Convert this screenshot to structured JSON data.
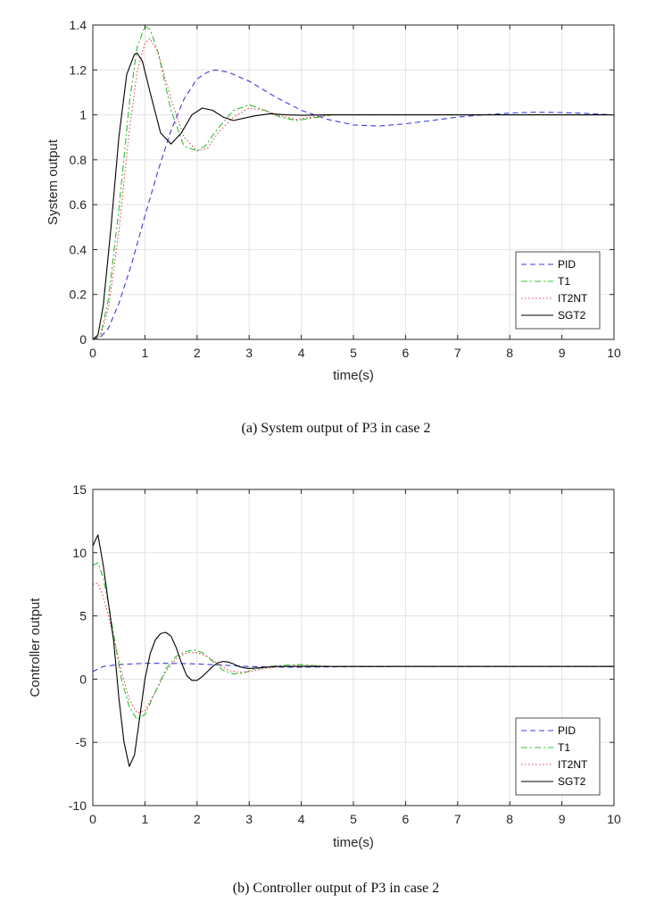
{
  "chart_data": [
    {
      "type": "line",
      "caption": "(a) System output of P3 in case 2",
      "xlabel": "time(s)",
      "ylabel": "System output",
      "xlim": [
        0,
        10
      ],
      "ylim": [
        0,
        1.4
      ],
      "xticks": [
        "0",
        "1",
        "2",
        "3",
        "4",
        "5",
        "6",
        "7",
        "8",
        "9",
        "10"
      ],
      "yticks": [
        "0",
        "0.2",
        "0.4",
        "0.6",
        "0.8",
        "1",
        "1.2",
        "1.4"
      ],
      "xtick_values": [
        0,
        1,
        2,
        3,
        4,
        5,
        6,
        7,
        8,
        9,
        10
      ],
      "ytick_values": [
        0,
        0.2,
        0.4,
        0.6,
        0.8,
        1,
        1.2,
        1.4
      ],
      "grid": true,
      "legend_position": "bottom-right",
      "series": [
        {
          "name": "PID",
          "color": "#3a3adf",
          "dash": "dashed",
          "x": [
            0,
            0.15,
            0.3,
            0.5,
            0.75,
            1.0,
            1.25,
            1.5,
            1.75,
            2.0,
            2.2,
            2.35,
            2.6,
            3.0,
            3.5,
            4.0,
            4.5,
            5.0,
            5.5,
            6.0,
            6.5,
            7.0,
            7.5,
            8.0,
            8.5,
            9.0,
            9.5,
            10.0
          ],
          "y": [
            0,
            0.01,
            0.05,
            0.16,
            0.34,
            0.55,
            0.75,
            0.93,
            1.07,
            1.16,
            1.19,
            1.2,
            1.19,
            1.15,
            1.08,
            1.02,
            0.98,
            0.955,
            0.95,
            0.96,
            0.975,
            0.99,
            1.0,
            1.008,
            1.012,
            1.01,
            1.006,
            1.0
          ]
        },
        {
          "name": "T1",
          "color": "#2fbf2f",
          "dash": "dashdot",
          "x": [
            0,
            0.15,
            0.3,
            0.5,
            0.7,
            0.85,
            1.0,
            1.1,
            1.25,
            1.5,
            1.75,
            2.0,
            2.15,
            2.4,
            2.7,
            3.0,
            3.3,
            3.6,
            3.9,
            4.2,
            4.6,
            5.0,
            6.0,
            7.0,
            8.0,
            9.0,
            10.0
          ],
          "y": [
            0,
            0.02,
            0.18,
            0.58,
            1.05,
            1.3,
            1.395,
            1.38,
            1.28,
            1.02,
            0.86,
            0.84,
            0.86,
            0.94,
            1.02,
            1.045,
            1.02,
            0.99,
            0.975,
            0.985,
            1.0,
            1.0,
            1.0,
            1.0,
            1.0,
            1.0,
            1.0
          ]
        },
        {
          "name": "IT2NT",
          "color": "#e0405a",
          "dash": "dotted",
          "x": [
            0,
            0.15,
            0.3,
            0.5,
            0.7,
            0.85,
            1.0,
            1.1,
            1.25,
            1.5,
            1.75,
            2.0,
            2.2,
            2.4,
            2.7,
            3.0,
            3.3,
            3.6,
            3.9,
            4.2,
            4.6,
            5.0,
            6.0,
            7.0,
            8.0,
            9.0,
            10.0
          ],
          "y": [
            0,
            0.015,
            0.14,
            0.48,
            0.93,
            1.19,
            1.32,
            1.34,
            1.28,
            1.07,
            0.9,
            0.84,
            0.85,
            0.92,
            0.99,
            1.03,
            1.02,
            0.995,
            0.98,
            0.99,
            1.0,
            1.0,
            1.0,
            1.0,
            1.0,
            1.0,
            1.0
          ]
        },
        {
          "name": "SGT2",
          "color": "#000000",
          "dash": "solid",
          "x": [
            0,
            0.1,
            0.2,
            0.35,
            0.5,
            0.65,
            0.8,
            0.85,
            0.95,
            1.1,
            1.3,
            1.5,
            1.7,
            1.9,
            2.1,
            2.3,
            2.5,
            2.7,
            2.9,
            3.1,
            3.4,
            3.7,
            4.0,
            4.5,
            5.0,
            6.0,
            7.0,
            8.0,
            9.0,
            10.0
          ],
          "y": [
            0,
            0.02,
            0.15,
            0.5,
            0.9,
            1.18,
            1.27,
            1.275,
            1.24,
            1.1,
            0.92,
            0.87,
            0.92,
            1.0,
            1.03,
            1.02,
            0.99,
            0.975,
            0.985,
            0.995,
            1.005,
            1.0,
            0.998,
            1.0,
            1.0,
            1.0,
            1.0,
            1.0,
            1.0,
            1.0
          ]
        }
      ]
    },
    {
      "type": "line",
      "caption": "(b) Controller output of P3 in case 2",
      "xlabel": "time(s)",
      "ylabel": "Controller output",
      "xlim": [
        0,
        10
      ],
      "ylim": [
        -10,
        15
      ],
      "xticks": [
        "0",
        "1",
        "2",
        "3",
        "4",
        "5",
        "6",
        "7",
        "8",
        "9",
        "10"
      ],
      "yticks": [
        "-10",
        "-5",
        "0",
        "5",
        "10",
        "15"
      ],
      "xtick_values": [
        0,
        1,
        2,
        3,
        4,
        5,
        6,
        7,
        8,
        9,
        10
      ],
      "ytick_values": [
        -10,
        -5,
        0,
        5,
        10,
        15
      ],
      "grid": true,
      "legend_position": "bottom-right",
      "series": [
        {
          "name": "PID",
          "color": "#3a3adf",
          "dash": "dashed",
          "x": [
            0,
            0.2,
            0.5,
            1.0,
            1.5,
            2.0,
            2.5,
            3.0,
            3.5,
            4.0,
            5.0,
            6.0,
            7.0,
            8.0,
            9.0,
            10.0
          ],
          "y": [
            0.6,
            1.0,
            1.15,
            1.25,
            1.25,
            1.2,
            1.1,
            1.0,
            0.95,
            0.95,
            0.98,
            1.0,
            1.0,
            1.0,
            1.0,
            1.0
          ]
        },
        {
          "name": "T1",
          "color": "#2fbf2f",
          "dash": "dashdot",
          "x": [
            0,
            0.1,
            0.2,
            0.3,
            0.4,
            0.55,
            0.7,
            0.85,
            1.0,
            1.2,
            1.4,
            1.6,
            1.8,
            1.95,
            2.1,
            2.3,
            2.5,
            2.7,
            2.9,
            3.1,
            3.4,
            3.7,
            4.0,
            4.3,
            4.6,
            5.0,
            6.0,
            7.0,
            8.0,
            9.0,
            10.0
          ],
          "y": [
            9.0,
            9.2,
            8.0,
            6.0,
            3.5,
            0.0,
            -2.2,
            -3.2,
            -2.8,
            -1.0,
            0.8,
            1.8,
            2.2,
            2.3,
            2.1,
            1.4,
            0.7,
            0.4,
            0.5,
            0.8,
            1.0,
            1.1,
            1.15,
            1.05,
            1.0,
            1.0,
            1.0,
            1.0,
            1.0,
            1.0,
            1.0
          ]
        },
        {
          "name": "IT2NT",
          "color": "#e0405a",
          "dash": "dotted",
          "x": [
            0,
            0.1,
            0.2,
            0.3,
            0.4,
            0.55,
            0.7,
            0.85,
            1.0,
            1.2,
            1.4,
            1.6,
            1.8,
            2.0,
            2.2,
            2.4,
            2.6,
            2.8,
            3.0,
            3.3,
            3.6,
            3.9,
            4.2,
            4.6,
            5.0,
            6.0,
            7.0,
            8.0,
            9.0,
            10.0
          ],
          "y": [
            7.5,
            7.6,
            6.5,
            5.0,
            3.3,
            0.6,
            -1.6,
            -2.7,
            -2.5,
            -1.0,
            0.6,
            1.6,
            2.1,
            2.1,
            1.8,
            1.2,
            0.7,
            0.55,
            0.6,
            0.85,
            1.0,
            1.05,
            1.05,
            1.0,
            1.0,
            1.0,
            1.0,
            1.0,
            1.0,
            1.0
          ]
        },
        {
          "name": "SGT2",
          "color": "#000000",
          "dash": "solid",
          "x": [
            0,
            0.05,
            0.1,
            0.2,
            0.3,
            0.4,
            0.5,
            0.6,
            0.7,
            0.8,
            0.9,
            1.0,
            1.1,
            1.2,
            1.3,
            1.4,
            1.5,
            1.6,
            1.7,
            1.8,
            1.9,
            2.0,
            2.1,
            2.2,
            2.3,
            2.4,
            2.5,
            2.6,
            2.7,
            2.8,
            2.9,
            3.0,
            3.2,
            3.5,
            4.0,
            5.0,
            6.0,
            7.0,
            8.0,
            9.0,
            10.0
          ],
          "y": [
            10.5,
            11.0,
            11.4,
            9.0,
            6.0,
            3.0,
            -1.5,
            -5.0,
            -6.9,
            -6.0,
            -3.0,
            0.0,
            2.0,
            3.1,
            3.6,
            3.7,
            3.4,
            2.5,
            1.3,
            0.3,
            -0.1,
            -0.1,
            0.2,
            0.6,
            1.0,
            1.3,
            1.4,
            1.35,
            1.2,
            1.0,
            0.9,
            0.85,
            0.9,
            1.0,
            1.0,
            1.0,
            1.0,
            1.0,
            1.0,
            1.0,
            1.0
          ]
        }
      ]
    }
  ]
}
